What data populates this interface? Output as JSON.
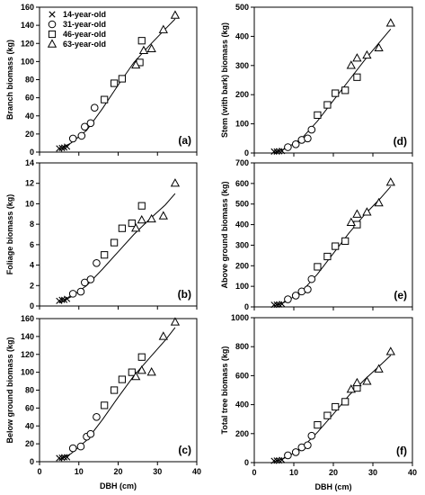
{
  "figure": {
    "shared_xlabel": "DBH (cm)",
    "legend": [
      {
        "marker": "cross",
        "label": "14-year-old"
      },
      {
        "marker": "circle",
        "label": "31-year-old"
      },
      {
        "marker": "square",
        "label": "46-year-old"
      },
      {
        "marker": "triangle",
        "label": "63-year-old"
      }
    ]
  },
  "chart_data": [
    {
      "type": "scatter",
      "panel": "(a)",
      "xlabel": "",
      "ylabel": "Branch biomass (kg)",
      "xlim": [
        0,
        40
      ],
      "ylim": [
        0,
        160
      ],
      "xticks": [
        0,
        10,
        20,
        30,
        40
      ],
      "yticks": [
        0,
        20,
        40,
        60,
        80,
        100,
        120,
        140,
        160
      ],
      "show_xtick_labels": false,
      "legend_position": "top-left",
      "series": [
        {
          "name": "14-year-old",
          "marker": "cross",
          "x": [
            5,
            5.7,
            6.3,
            7
          ],
          "y": [
            4,
            4.5,
            5,
            6
          ]
        },
        {
          "name": "31-year-old",
          "marker": "circle",
          "x": [
            8.5,
            10.7,
            11.5,
            13,
            14
          ],
          "y": [
            15,
            18,
            28,
            32,
            49
          ]
        },
        {
          "name": "46-year-old",
          "marker": "square",
          "x": [
            16.5,
            19,
            21,
            25.5,
            26
          ],
          "y": [
            58,
            76,
            81,
            99,
            123
          ]
        },
        {
          "name": "63-year-old",
          "marker": "triangle",
          "x": [
            24.5,
            26.5,
            28.5,
            31.5,
            34.5
          ],
          "y": [
            96,
            112,
            114,
            135,
            151
          ]
        }
      ],
      "fit_line": {
        "x": [
          5,
          8,
          12,
          16,
          20,
          24,
          28,
          32,
          34.5
        ],
        "y": [
          3,
          10,
          24,
          48,
          74,
          99,
          118,
          136,
          147
        ]
      }
    },
    {
      "type": "scatter",
      "panel": "(d)",
      "xlabel": "",
      "ylabel": "Stem (with bark) biomass (kg)",
      "xlim": [
        0,
        40
      ],
      "ylim": [
        0,
        500
      ],
      "xticks": [
        0,
        10,
        20,
        30,
        40
      ],
      "yticks": [
        0,
        100,
        200,
        300,
        400,
        500
      ],
      "show_xtick_labels": false,
      "series": [
        {
          "name": "14-year-old",
          "marker": "cross",
          "x": [
            5,
            5.7,
            6.3,
            7
          ],
          "y": [
            5,
            5,
            6,
            7
          ]
        },
        {
          "name": "31-year-old",
          "marker": "circle",
          "x": [
            8.5,
            10.5,
            12,
            13.5,
            14.5
          ],
          "y": [
            20,
            30,
            45,
            50,
            80
          ]
        },
        {
          "name": "46-year-old",
          "marker": "square",
          "x": [
            16,
            18.5,
            20.5,
            23,
            26
          ],
          "y": [
            130,
            165,
            205,
            215,
            260
          ]
        },
        {
          "name": "63-year-old",
          "marker": "triangle",
          "x": [
            24.5,
            26,
            28.5,
            31.5,
            34.5
          ],
          "y": [
            300,
            325,
            335,
            360,
            445
          ]
        }
      ],
      "fit_line": {
        "x": [
          5,
          8,
          12,
          16,
          20,
          24,
          28,
          32,
          34.5
        ],
        "y": [
          2,
          15,
          50,
          110,
          180,
          250,
          320,
          385,
          425
        ]
      }
    },
    {
      "type": "scatter",
      "panel": "(b)",
      "xlabel": "",
      "ylabel": "Foliage biomass (kg)",
      "xlim": [
        0,
        40
      ],
      "ylim": [
        0,
        14
      ],
      "xticks": [
        0,
        10,
        20,
        30,
        40
      ],
      "yticks": [
        0,
        2,
        4,
        6,
        8,
        10,
        12,
        14
      ],
      "show_xtick_labels": false,
      "series": [
        {
          "name": "14-year-old",
          "marker": "cross",
          "x": [
            5,
            5.7,
            6.3,
            7
          ],
          "y": [
            0.5,
            0.6,
            0.6,
            0.7
          ]
        },
        {
          "name": "31-year-old",
          "marker": "circle",
          "x": [
            8.5,
            10.5,
            11.5,
            13,
            14.5
          ],
          "y": [
            1.2,
            1.4,
            2.3,
            2.6,
            4.2
          ]
        },
        {
          "name": "46-year-old",
          "marker": "square",
          "x": [
            16.5,
            19,
            21,
            23.5,
            26
          ],
          "y": [
            5,
            6.2,
            7.6,
            8.1,
            9.8
          ]
        },
        {
          "name": "63-year-old",
          "marker": "triangle",
          "x": [
            24.5,
            26,
            28.5,
            31.5,
            34.5
          ],
          "y": [
            7.6,
            8.4,
            8.5,
            8.8,
            12
          ]
        }
      ],
      "fit_line": {
        "x": [
          5,
          8,
          12,
          16,
          20,
          24,
          28,
          32,
          34.5
        ],
        "y": [
          0.3,
          0.9,
          2.0,
          3.6,
          5.3,
          7.0,
          8.5,
          9.9,
          11.0
        ]
      }
    },
    {
      "type": "scatter",
      "panel": "(e)",
      "xlabel": "",
      "ylabel": "Above ground biomass (kg)",
      "xlim": [
        0,
        40
      ],
      "ylim": [
        0,
        700
      ],
      "xticks": [
        0,
        10,
        20,
        30,
        40
      ],
      "yticks": [
        0,
        100,
        200,
        300,
        400,
        500,
        600,
        700
      ],
      "show_xtick_labels": false,
      "series": [
        {
          "name": "14-year-old",
          "marker": "cross",
          "x": [
            5,
            5.7,
            6.3,
            7
          ],
          "y": [
            10,
            11,
            12,
            14
          ]
        },
        {
          "name": "31-year-old",
          "marker": "circle",
          "x": [
            8.5,
            10.5,
            12,
            13.5,
            14.5
          ],
          "y": [
            37,
            55,
            75,
            85,
            135
          ]
        },
        {
          "name": "46-year-old",
          "marker": "square",
          "x": [
            16,
            18.5,
            20.5,
            23,
            26
          ],
          "y": [
            195,
            245,
            295,
            320,
            400
          ]
        },
        {
          "name": "63-year-old",
          "marker": "triangle",
          "x": [
            24.5,
            26,
            28.5,
            31.5,
            34.5
          ],
          "y": [
            410,
            450,
            460,
            505,
            605
          ]
        }
      ],
      "fit_line": {
        "x": [
          5,
          8,
          12,
          16,
          20,
          24,
          28,
          32,
          34.5
        ],
        "y": [
          5,
          25,
          75,
          160,
          260,
          360,
          450,
          530,
          585
        ]
      }
    },
    {
      "type": "scatter",
      "panel": "(c)",
      "xlabel": "DBH (cm)",
      "ylabel": "Below ground biomass (kg)",
      "xlim": [
        0,
        40
      ],
      "ylim": [
        0,
        160
      ],
      "xticks": [
        0,
        10,
        20,
        30,
        40
      ],
      "yticks": [
        0,
        20,
        40,
        60,
        80,
        100,
        120,
        140,
        160
      ],
      "show_xtick_labels": true,
      "series": [
        {
          "name": "14-year-old",
          "marker": "cross",
          "x": [
            5,
            5.7,
            6.3,
            7
          ],
          "y": [
            4,
            4.5,
            5,
            5
          ]
        },
        {
          "name": "31-year-old",
          "marker": "circle",
          "x": [
            8.5,
            10.5,
            12,
            13,
            14.5
          ],
          "y": [
            15,
            17,
            28,
            31,
            50
          ]
        },
        {
          "name": "46-year-old",
          "marker": "square",
          "x": [
            16.5,
            19,
            21,
            23.5,
            26
          ],
          "y": [
            63,
            80,
            92,
            100,
            117
          ]
        },
        {
          "name": "63-year-old",
          "marker": "triangle",
          "x": [
            24.5,
            26,
            28.5,
            31.5,
            34.5
          ],
          "y": [
            95,
            102,
            100,
            140,
            156
          ]
        }
      ],
      "fit_line": {
        "x": [
          5,
          8,
          12,
          16,
          20,
          24,
          28,
          32,
          34.5
        ],
        "y": [
          2,
          9,
          24,
          47,
          72,
          96,
          116,
          136,
          150
        ]
      }
    },
    {
      "type": "scatter",
      "panel": "(f)",
      "xlabel": "DBH (cm)",
      "ylabel": "Total tree biomass (kg)",
      "xlim": [
        0,
        40
      ],
      "ylim": [
        0,
        1000
      ],
      "xticks": [
        0,
        10,
        20,
        30,
        40
      ],
      "yticks": [
        0,
        200,
        400,
        600,
        800,
        1000
      ],
      "show_xtick_labels": true,
      "series": [
        {
          "name": "14-year-old",
          "marker": "cross",
          "x": [
            5,
            5.7,
            6.3,
            7
          ],
          "y": [
            12,
            14,
            15,
            18
          ]
        },
        {
          "name": "31-year-old",
          "marker": "circle",
          "x": [
            8.5,
            10.5,
            12,
            13.5,
            14.5
          ],
          "y": [
            50,
            72,
            105,
            120,
            185
          ]
        },
        {
          "name": "46-year-old",
          "marker": "square",
          "x": [
            16,
            18.5,
            20.5,
            23,
            26
          ],
          "y": [
            260,
            325,
            385,
            420,
            515
          ]
        },
        {
          "name": "63-year-old",
          "marker": "triangle",
          "x": [
            24.5,
            26,
            28.5,
            31.5,
            34.5
          ],
          "y": [
            505,
            550,
            560,
            645,
            765
          ]
        }
      ],
      "fit_line": {
        "x": [
          5,
          8,
          12,
          16,
          20,
          24,
          28,
          32,
          34.5
        ],
        "y": [
          5,
          35,
          100,
          210,
          335,
          465,
          575,
          675,
          740
        ]
      }
    }
  ]
}
